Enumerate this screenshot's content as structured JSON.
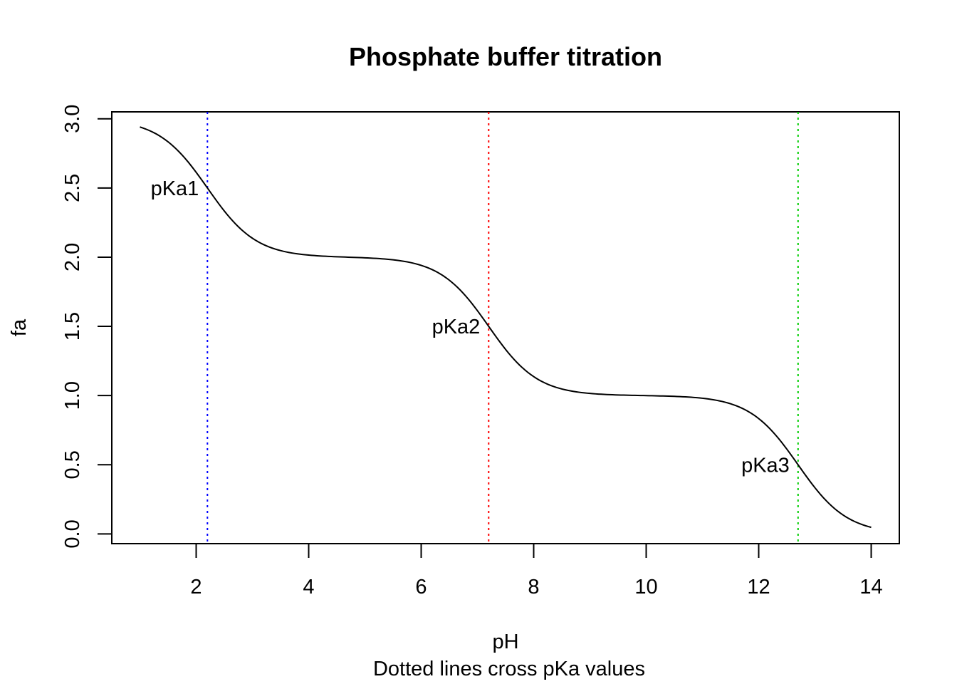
{
  "chart_data": {
    "type": "line",
    "title": "Phosphate buffer titration",
    "xlabel": "pH",
    "ylabel": "fa",
    "subtitle": "Dotted lines cross pKa values",
    "xlim": [
      0.5,
      14.5
    ],
    "ylim": [
      -0.07,
      3.05
    ],
    "x_ticks": [
      2,
      4,
      6,
      8,
      10,
      12,
      14
    ],
    "y_ticks": [
      0.0,
      0.5,
      1.0,
      1.5,
      2.0,
      2.5,
      3.0
    ],
    "x_tick_labels": [
      "2",
      "4",
      "6",
      "8",
      "10",
      "12",
      "14"
    ],
    "y_tick_labels": [
      "0.0",
      "0.5",
      "1.0",
      "1.5",
      "2.0",
      "2.5",
      "3.0"
    ],
    "grid": false,
    "pka_values": [
      2.2,
      7.2,
      12.7
    ],
    "series": [
      {
        "x_range": [
          1,
          14
        ],
        "values_described_by_pka": [
          2.2,
          7.2,
          12.7
        ]
      }
    ],
    "vertical_lines": [
      {
        "x": 2.2,
        "color": "#0000ff",
        "style": "dotted"
      },
      {
        "x": 7.2,
        "color": "#ff0000",
        "style": "dotted"
      },
      {
        "x": 12.7,
        "color": "#00cd00",
        "style": "dotted"
      }
    ],
    "annotations": [
      {
        "text": "pKa1",
        "x": 2.2,
        "y": 2.5
      },
      {
        "text": "pKa2",
        "x": 7.2,
        "y": 1.5
      },
      {
        "text": "pKa3",
        "x": 12.7,
        "y": 0.5
      }
    ]
  }
}
